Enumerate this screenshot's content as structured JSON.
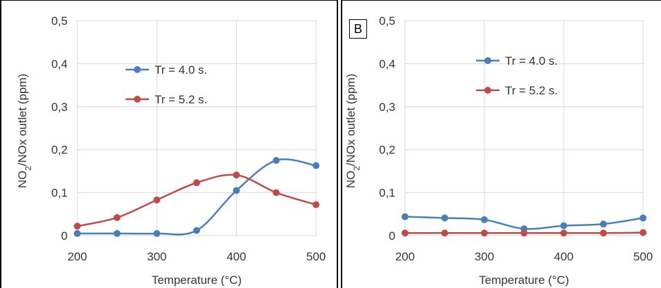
{
  "chart_data": [
    {
      "type": "line",
      "panel_label": "",
      "title": "",
      "xlabel": "Temperature (°C)",
      "ylabel_main": "NO",
      "ylabel_sub": "2",
      "ylabel_rest": "/NOx  outlet (ppm)",
      "xlim": [
        200,
        500
      ],
      "ylim": [
        0,
        0.5
      ],
      "xticks": [
        "200",
        "300",
        "400",
        "500"
      ],
      "xtick_values": [
        200,
        300,
        400,
        500
      ],
      "yticks": [
        "0",
        "0,1",
        "0,2",
        "0,3",
        "0,4",
        "0,5"
      ],
      "ytick_values": [
        0,
        0.1,
        0.2,
        0.3,
        0.4,
        0.5
      ],
      "grid": true,
      "legend_position": "top-center",
      "x": [
        200,
        250,
        300,
        350,
        400,
        450,
        500
      ],
      "series": [
        {
          "name": "Tr = 4.0 s.",
          "color": "#4a7ebb",
          "values": [
            0.005,
            0.005,
            0.005,
            0.012,
            0.105,
            0.175,
            0.163
          ]
        },
        {
          "name": "Tr = 5.2 s.",
          "color": "#be4b48",
          "values": [
            0.022,
            0.042,
            0.083,
            0.123,
            0.141,
            0.1,
            0.072
          ]
        }
      ]
    },
    {
      "type": "line",
      "panel_label": "B",
      "title": "",
      "xlabel": "Temperature (°C)",
      "ylabel_main": "NO",
      "ylabel_sub": "2",
      "ylabel_rest": "/NOx  outlet (ppm)",
      "xlim": [
        200,
        500
      ],
      "ylim": [
        0,
        0.5
      ],
      "xticks": [
        "200",
        "300",
        "400",
        "500"
      ],
      "xtick_values": [
        200,
        300,
        400,
        500
      ],
      "yticks": [
        "0",
        "0,1",
        "0,2",
        "0,3",
        "0,4",
        "0,5"
      ],
      "ytick_values": [
        0,
        0.1,
        0.2,
        0.3,
        0.4,
        0.5
      ],
      "grid": true,
      "legend_position": "top-center",
      "x": [
        200,
        250,
        300,
        350,
        400,
        450,
        500
      ],
      "series": [
        {
          "name": "Tr = 4.0 s.",
          "color": "#4a7ebb",
          "values": [
            0.044,
            0.041,
            0.037,
            0.016,
            0.023,
            0.027,
            0.041
          ]
        },
        {
          "name": "Tr = 5.2 s.",
          "color": "#be4b48",
          "values": [
            0.006,
            0.006,
            0.006,
            0.006,
            0.006,
            0.006,
            0.007
          ]
        }
      ]
    }
  ]
}
